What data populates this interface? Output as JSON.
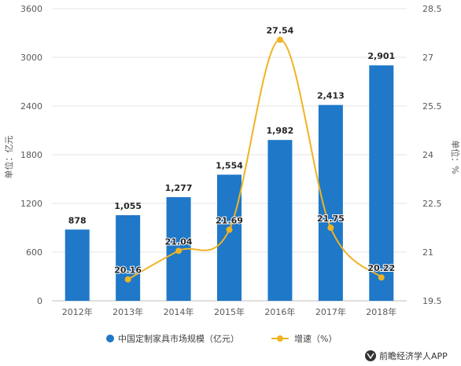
{
  "chart_data": {
    "type": "bar",
    "categories": [
      "2012年",
      "2013年",
      "2014年",
      "2015年",
      "2016年",
      "2017年",
      "2018年"
    ],
    "series": [
      {
        "name": "中国定制家具市场规模（亿元）",
        "type": "bar",
        "axis": "left",
        "color": "#1f78c8",
        "values": [
          878,
          1055,
          1277,
          1554,
          1982,
          2413,
          2901
        ],
        "labels": [
          "878",
          "1,055",
          "1,277",
          "1,554",
          "1,982",
          "2,413",
          "2,901"
        ]
      },
      {
        "name": "增速（%）",
        "type": "line",
        "axis": "right",
        "color": "#f0b323",
        "values": [
          null,
          20.16,
          21.04,
          21.69,
          27.54,
          21.75,
          20.22
        ],
        "labels": [
          "",
          "20.16",
          "21.04",
          "21.69",
          "27.54",
          "21.75",
          "20.22"
        ]
      }
    ],
    "ylabel_left": "单位：亿元",
    "ylabel_right": "单位：%",
    "ylim_left": [
      0,
      3600
    ],
    "yticks_left": [
      "0",
      "600",
      "1200",
      "1800",
      "2400",
      "3000",
      "3600"
    ],
    "ylim_right": [
      19.5,
      28.5
    ],
    "yticks_right": [
      "19.5",
      "21",
      "22.5",
      "24",
      "25.5",
      "27",
      "28.5"
    ],
    "grid": true,
    "legend_position": "bottom"
  },
  "source": {
    "logo_icon": "qianzhan-logo-icon",
    "text": "前瞻经济学人APP"
  }
}
